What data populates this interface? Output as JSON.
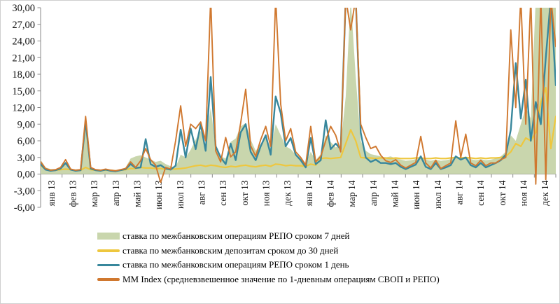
{
  "chart_data": {
    "type": "area-line-combo",
    "title": "",
    "grid": false,
    "legend_position": "bottom-left",
    "axis_color": "#8a8a8a",
    "text_color": "#111111",
    "ylim": [
      -6,
      30
    ],
    "y_ticks": [
      -6,
      -3,
      0,
      3,
      6,
      9,
      12,
      15,
      18,
      21,
      24,
      27,
      30
    ],
    "y_tick_labels": [
      "-6,00",
      "-3,00",
      "0,00",
      "3,00",
      "6,00",
      "9,00",
      "12,00",
      "15,00",
      "18,00",
      "21,00",
      "24,00",
      "27,00",
      "30,00"
    ],
    "x_tick_labels": [
      "янв 13",
      "фев 13",
      "мар 13",
      "апр 13",
      "май 13",
      "июн 13",
      "июл 13",
      "авг 13",
      "сен 13",
      "окт 13",
      "ноя 13",
      "дек 13",
      "янв 14",
      "фев 14",
      "мар 14",
      "апр 14",
      "май 14",
      "июн 14",
      "июл 14",
      "авг 14",
      "сен 14",
      "окт 14",
      "ноя 14",
      "дек 14"
    ],
    "x_note": "weekly samples, values at 30.00 are clipped at the axis maximum",
    "series": [
      {
        "name": "ставка по межбанковским операциям РЕПО сроком 7 дней",
        "type": "area",
        "color": "#c9d6ad",
        "values": [
          2.6,
          1.2,
          0.9,
          0.9,
          1.1,
          2.2,
          1.0,
          0.8,
          0.9,
          9.8,
          1.2,
          0.9,
          0.8,
          0.9,
          0.8,
          0.7,
          0.8,
          1.2,
          2.8,
          3.2,
          3.4,
          3.0,
          2.6,
          2.2,
          2.4,
          1.8,
          1.4,
          1.2,
          3.5,
          3.0,
          4.4,
          6.2,
          7.8,
          5.2,
          12.0,
          4.6,
          3.2,
          2.8,
          5.8,
          6.4,
          8.6,
          9.2,
          6.2,
          4.2,
          5.4,
          6.8,
          4.6,
          9.0,
          7.0,
          5.0,
          4.5,
          3.5,
          3.0,
          2.0,
          4.0,
          2.5,
          3.6,
          7.0,
          5.8,
          4.8,
          5.2,
          14.0,
          30.0,
          17.5,
          6.0,
          4.2,
          3.6,
          3.4,
          3.2,
          3.0,
          3.2,
          2.8,
          2.6,
          2.4,
          2.5,
          2.7,
          3.0,
          2.6,
          2.4,
          2.6,
          2.4,
          2.5,
          2.7,
          3.2,
          2.9,
          3.0,
          2.7,
          2.5,
          2.7,
          2.5,
          2.6,
          2.8,
          3.2,
          4.0,
          7.0,
          6.0,
          9.0,
          12.0,
          10.0,
          30.0,
          30.0,
          30.0,
          30.0,
          30.0
        ]
      },
      {
        "name": "ставка по межбанковским депозитам сроком до 30 дней",
        "type": "line",
        "color": "#eec73e",
        "values": [
          1.5,
          0.9,
          0.7,
          0.7,
          0.8,
          0.9,
          0.8,
          0.7,
          0.7,
          1.2,
          0.8,
          0.7,
          0.7,
          0.7,
          0.7,
          0.6,
          0.7,
          0.8,
          1.0,
          1.0,
          1.2,
          1.1,
          1.1,
          1.0,
          1.0,
          0.9,
          0.9,
          0.9,
          1.0,
          1.1,
          1.3,
          1.5,
          1.6,
          1.4,
          1.6,
          1.5,
          1.3,
          1.2,
          1.4,
          1.3,
          1.5,
          1.6,
          1.4,
          1.3,
          1.5,
          1.6,
          1.4,
          1.8,
          1.7,
          1.5,
          1.6,
          1.5,
          1.5,
          1.4,
          1.8,
          1.6,
          2.8,
          2.9,
          2.8,
          2.9,
          3.0,
          5.5,
          8.0,
          6.0,
          3.0,
          2.9,
          2.9,
          2.8,
          2.9,
          2.9,
          2.8,
          2.9,
          2.8,
          2.8,
          2.8,
          2.9,
          2.9,
          2.8,
          2.8,
          2.9,
          2.8,
          2.8,
          2.9,
          3.0,
          2.9,
          3.0,
          2.9,
          2.8,
          2.9,
          2.8,
          2.9,
          2.9,
          3.0,
          3.2,
          4.0,
          5.5,
          5.0,
          6.5,
          6.0,
          7.5,
          13.0,
          15.6,
          4.6,
          10.4
        ]
      },
      {
        "name": "ставка по межбанковским операциям РЕПО сроком 1 день",
        "type": "line",
        "color": "#38879c",
        "values": [
          1.8,
          0.8,
          0.6,
          0.7,
          1.0,
          2.0,
          0.8,
          0.6,
          0.7,
          9.5,
          1.0,
          0.7,
          0.6,
          0.8,
          0.6,
          0.5,
          0.7,
          0.9,
          1.8,
          1.1,
          1.2,
          6.3,
          1.8,
          1.3,
          1.6,
          1.0,
          0.8,
          1.5,
          8.0,
          3.0,
          8.2,
          4.5,
          9.0,
          4.2,
          17.5,
          5.0,
          3.0,
          1.8,
          5.5,
          2.5,
          7.5,
          9.0,
          4.0,
          2.5,
          5.0,
          7.0,
          3.5,
          14.0,
          11.0,
          5.0,
          6.5,
          3.5,
          2.5,
          1.2,
          6.5,
          1.8,
          2.5,
          9.7,
          4.5,
          5.5,
          4.5,
          30.0,
          30.0,
          30.0,
          7.5,
          3.0,
          2.2,
          2.6,
          2.0,
          2.0,
          1.8,
          2.0,
          1.3,
          0.9,
          1.3,
          1.7,
          3.2,
          1.3,
          0.9,
          2.0,
          0.9,
          1.2,
          1.6,
          3.2,
          2.6,
          3.0,
          1.6,
          1.2,
          2.0,
          1.2,
          1.6,
          2.0,
          2.5,
          3.5,
          8.0,
          20.0,
          10.0,
          17.0,
          6.0,
          13.0,
          9.0,
          21.0,
          30.0,
          16.0
        ]
      },
      {
        "name": "MM Index (средневзвешенное значение по 1-дневным операциям СВОП и РЕПО)",
        "type": "line",
        "color": "#d0782f",
        "values": [
          2.2,
          1.0,
          0.7,
          0.8,
          1.2,
          2.6,
          0.9,
          0.7,
          0.8,
          10.4,
          1.2,
          0.8,
          0.7,
          0.9,
          0.7,
          0.6,
          0.8,
          1.0,
          2.2,
          1.2,
          2.4,
          4.6,
          2.6,
          1.6,
          -1.5,
          1.2,
          0.9,
          6.0,
          12.3,
          5.0,
          9.0,
          8.2,
          9.4,
          6.0,
          30.0,
          4.2,
          2.2,
          6.6,
          3.1,
          4.0,
          9.2,
          15.3,
          5.1,
          3.2,
          6.2,
          8.6,
          5.0,
          30.0,
          12.6,
          6.0,
          8.2,
          4.0,
          3.0,
          1.6,
          8.6,
          2.2,
          3.2,
          6.0,
          8.6,
          7.0,
          4.0,
          30.0,
          26.0,
          30.0,
          9.0,
          6.6,
          4.6,
          5.0,
          3.4,
          2.4,
          2.1,
          2.6,
          1.6,
          1.1,
          1.6,
          2.1,
          6.8,
          2.0,
          1.1,
          2.5,
          1.0,
          1.5,
          2.0,
          9.6,
          3.0,
          7.2,
          2.0,
          1.5,
          2.5,
          1.5,
          2.0,
          2.0,
          2.6,
          3.0,
          26.0,
          12.0,
          30.0,
          9.0,
          30.0,
          -1.8,
          30.0,
          -1.0,
          30.0,
          23.0
        ]
      }
    ]
  }
}
